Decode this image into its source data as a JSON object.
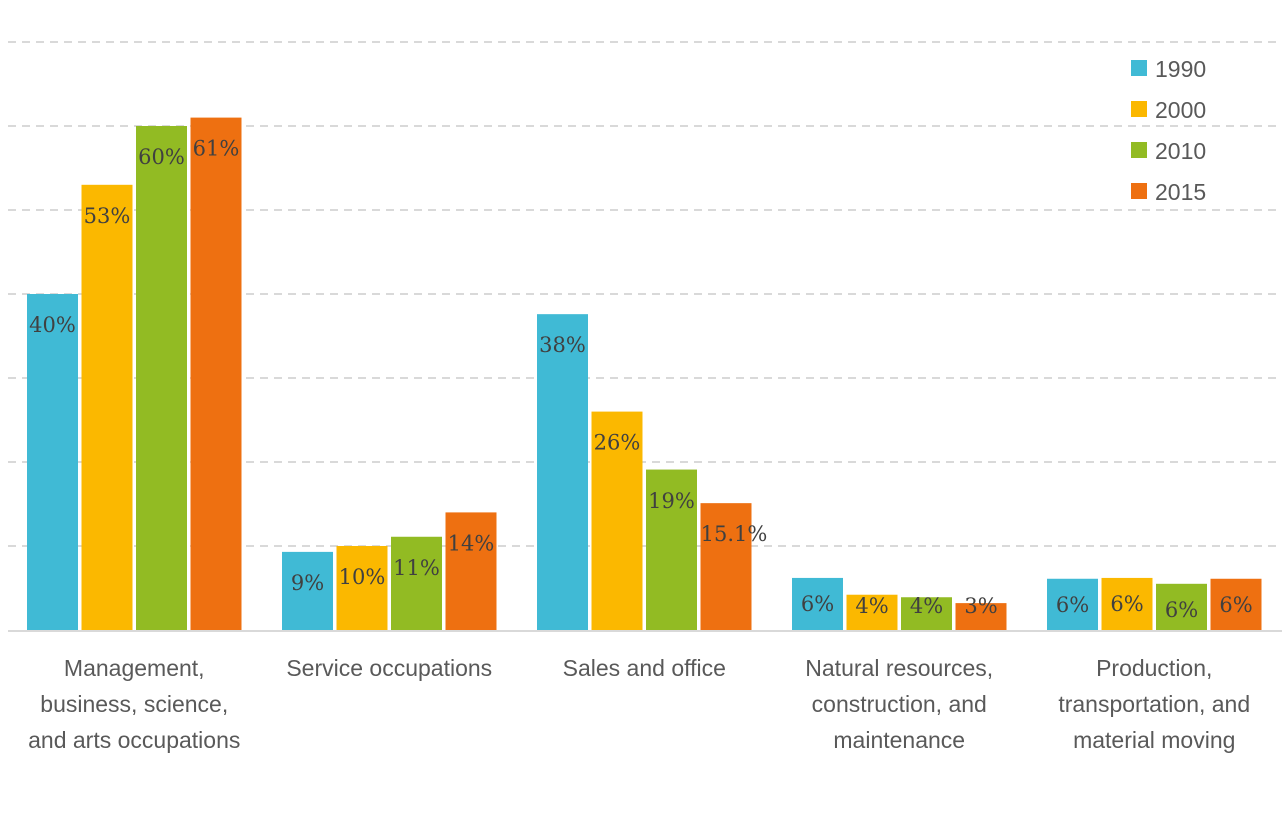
{
  "chart_data": {
    "type": "bar",
    "title": "",
    "xlabel": "",
    "ylabel": "",
    "ylim": [
      0,
      70
    ],
    "grid": true,
    "legend_position": "top-right",
    "categories": [
      [
        "Management,",
        "business, science,",
        "and arts occupations"
      ],
      [
        "Service occupations"
      ],
      [
        "Sales and office"
      ],
      [
        "Natural resources,",
        "construction, and",
        "maintenance"
      ],
      [
        "Production,",
        "transportation, and",
        "material moving"
      ]
    ],
    "series": [
      {
        "name": "1990",
        "color": "#40bad5",
        "values": [
          40,
          9.3,
          37.6,
          6.2,
          6.1
        ],
        "labels": [
          "40%",
          "9%",
          "38%",
          "6%",
          "6%"
        ]
      },
      {
        "name": "2000",
        "color": "#fbb800",
        "values": [
          53,
          10,
          26,
          4.2,
          6.2
        ],
        "labels": [
          "53%",
          "10%",
          "26%",
          "4%",
          "6%"
        ]
      },
      {
        "name": "2010",
        "color": "#92bb23",
        "values": [
          60,
          11.1,
          19.1,
          3.9,
          5.5
        ],
        "labels": [
          "60%",
          "11%",
          "19%",
          "4%",
          "6%"
        ]
      },
      {
        "name": "2015",
        "color": "#ee7011",
        "values": [
          61,
          14,
          15.1,
          3.2,
          6.1
        ],
        "labels": [
          "61%",
          "14%",
          "15.1%",
          "3%",
          "6%"
        ]
      }
    ]
  }
}
